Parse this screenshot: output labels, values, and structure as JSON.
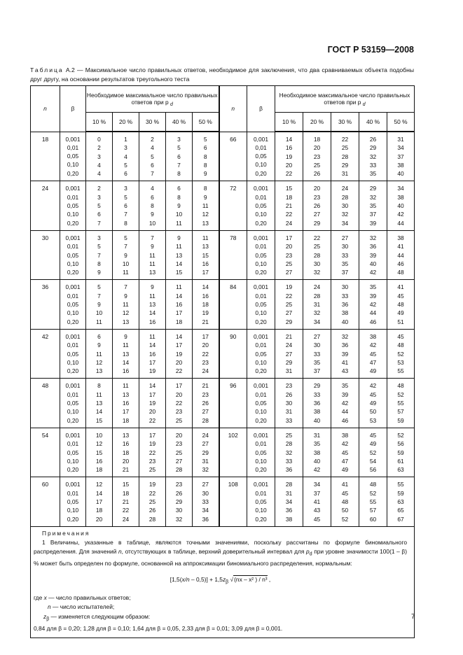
{
  "header": {
    "standard": "ГОСТ Р 53159—2008"
  },
  "caption": {
    "label": "Таблица",
    "text": "А.2 — Максимальное число правильных ответов, необходимое для заключения, что два сравниваемых объекта подобны друг другу, на основании результатов треугольного теста"
  },
  "table": {
    "col_n": "n",
    "col_beta": "β",
    "col_group_header": "Необходимое максимальное число правильных ответов при p",
    "col_group_sub": "d",
    "pct": [
      "10 %",
      "20 %",
      "30 %",
      "40 %",
      "50 %"
    ],
    "betas": [
      "0,001",
      "0,01",
      "0,05",
      "0,10",
      "0,20"
    ],
    "left_groups": [
      {
        "n": "18",
        "rows": [
          [
            "0",
            "1",
            "2",
            "3",
            "5"
          ],
          [
            "2",
            "3",
            "4",
            "5",
            "6"
          ],
          [
            "3",
            "4",
            "5",
            "6",
            "8"
          ],
          [
            "4",
            "5",
            "6",
            "7",
            "8"
          ],
          [
            "4",
            "6",
            "7",
            "8",
            "9"
          ]
        ]
      },
      {
        "n": "24",
        "rows": [
          [
            "2",
            "3",
            "4",
            "6",
            "8"
          ],
          [
            "3",
            "5",
            "6",
            "8",
            "9"
          ],
          [
            "5",
            "6",
            "8",
            "9",
            "11"
          ],
          [
            "6",
            "7",
            "9",
            "10",
            "12"
          ],
          [
            "7",
            "8",
            "10",
            "11",
            "13"
          ]
        ]
      },
      {
        "n": "30",
        "rows": [
          [
            "3",
            "5",
            "7",
            "9",
            "11"
          ],
          [
            "5",
            "7",
            "9",
            "11",
            "13"
          ],
          [
            "7",
            "9",
            "11",
            "13",
            "15"
          ],
          [
            "8",
            "10",
            "11",
            "14",
            "16"
          ],
          [
            "9",
            "11",
            "13",
            "15",
            "17"
          ]
        ]
      },
      {
        "n": "36",
        "rows": [
          [
            "5",
            "7",
            "9",
            "11",
            "14"
          ],
          [
            "7",
            "9",
            "11",
            "14",
            "16"
          ],
          [
            "9",
            "11",
            "13",
            "16",
            "18"
          ],
          [
            "10",
            "12",
            "14",
            "17",
            "19"
          ],
          [
            "11",
            "13",
            "16",
            "18",
            "21"
          ]
        ]
      },
      {
        "n": "42",
        "rows": [
          [
            "6",
            "9",
            "11",
            "14",
            "17"
          ],
          [
            "9",
            "11",
            "14",
            "17",
            "20"
          ],
          [
            "11",
            "13",
            "16",
            "19",
            "22"
          ],
          [
            "12",
            "14",
            "17",
            "20",
            "23"
          ],
          [
            "13",
            "16",
            "19",
            "22",
            "24"
          ]
        ]
      },
      {
        "n": "48",
        "rows": [
          [
            "8",
            "11",
            "14",
            "17",
            "21"
          ],
          [
            "11",
            "13",
            "17",
            "20",
            "23"
          ],
          [
            "13",
            "16",
            "19",
            "22",
            "26"
          ],
          [
            "14",
            "17",
            "20",
            "23",
            "27"
          ],
          [
            "15",
            "18",
            "22",
            "25",
            "28"
          ]
        ]
      },
      {
        "n": "54",
        "rows": [
          [
            "10",
            "13",
            "17",
            "20",
            "24"
          ],
          [
            "12",
            "16",
            "19",
            "23",
            "27"
          ],
          [
            "15",
            "18",
            "22",
            "25",
            "29"
          ],
          [
            "16",
            "20",
            "23",
            "27",
            "31"
          ],
          [
            "18",
            "21",
            "25",
            "28",
            "32"
          ]
        ]
      },
      {
        "n": "60",
        "rows": [
          [
            "12",
            "15",
            "19",
            "23",
            "27"
          ],
          [
            "14",
            "18",
            "22",
            "26",
            "30"
          ],
          [
            "17",
            "21",
            "25",
            "29",
            "33"
          ],
          [
            "18",
            "22",
            "26",
            "30",
            "34"
          ],
          [
            "20",
            "24",
            "28",
            "32",
            "36"
          ]
        ]
      }
    ],
    "right_groups": [
      {
        "n": "66",
        "rows": [
          [
            "14",
            "18",
            "22",
            "26",
            "31"
          ],
          [
            "16",
            "20",
            "25",
            "29",
            "34"
          ],
          [
            "19",
            "23",
            "28",
            "32",
            "37"
          ],
          [
            "20",
            "25",
            "29",
            "33",
            "38"
          ],
          [
            "22",
            "26",
            "31",
            "35",
            "40"
          ]
        ]
      },
      {
        "n": "72",
        "rows": [
          [
            "15",
            "20",
            "24",
            "29",
            "34"
          ],
          [
            "18",
            "23",
            "28",
            "32",
            "38"
          ],
          [
            "21",
            "26",
            "30",
            "35",
            "40"
          ],
          [
            "22",
            "27",
            "32",
            "37",
            "42"
          ],
          [
            "24",
            "29",
            "34",
            "39",
            "44"
          ]
        ]
      },
      {
        "n": "78",
        "rows": [
          [
            "17",
            "22",
            "27",
            "32",
            "38"
          ],
          [
            "20",
            "25",
            "30",
            "36",
            "41"
          ],
          [
            "23",
            "28",
            "33",
            "39",
            "44"
          ],
          [
            "25",
            "30",
            "35",
            "40",
            "46"
          ],
          [
            "27",
            "32",
            "37",
            "42",
            "48"
          ]
        ]
      },
      {
        "n": "84",
        "rows": [
          [
            "19",
            "24",
            "30",
            "35",
            "41"
          ],
          [
            "22",
            "28",
            "33",
            "39",
            "45"
          ],
          [
            "25",
            "31",
            "36",
            "42",
            "48"
          ],
          [
            "27",
            "32",
            "38",
            "44",
            "49"
          ],
          [
            "29",
            "34",
            "40",
            "46",
            "51"
          ]
        ]
      },
      {
        "n": "90",
        "rows": [
          [
            "21",
            "27",
            "32",
            "38",
            "45"
          ],
          [
            "24",
            "30",
            "36",
            "42",
            "48"
          ],
          [
            "27",
            "33",
            "39",
            "45",
            "52"
          ],
          [
            "29",
            "35",
            "41",
            "47",
            "53"
          ],
          [
            "31",
            "37",
            "43",
            "49",
            "55"
          ]
        ]
      },
      {
        "n": "96",
        "rows": [
          [
            "23",
            "29",
            "35",
            "42",
            "48"
          ],
          [
            "26",
            "33",
            "39",
            "45",
            "52"
          ],
          [
            "30",
            "36",
            "42",
            "49",
            "55"
          ],
          [
            "31",
            "38",
            "44",
            "50",
            "57"
          ],
          [
            "33",
            "40",
            "46",
            "53",
            "59"
          ]
        ]
      },
      {
        "n": "102",
        "rows": [
          [
            "25",
            "31",
            "38",
            "45",
            "52"
          ],
          [
            "28",
            "35",
            "42",
            "49",
            "56"
          ],
          [
            "32",
            "38",
            "45",
            "52",
            "59"
          ],
          [
            "33",
            "40",
            "47",
            "54",
            "61"
          ],
          [
            "36",
            "42",
            "49",
            "56",
            "63"
          ]
        ]
      },
      {
        "n": "108",
        "rows": [
          [
            "28",
            "34",
            "41",
            "48",
            "55"
          ],
          [
            "31",
            "37",
            "45",
            "52",
            "59"
          ],
          [
            "34",
            "41",
            "48",
            "55",
            "63"
          ],
          [
            "36",
            "43",
            "50",
            "57",
            "65"
          ],
          [
            "38",
            "45",
            "52",
            "60",
            "67"
          ]
        ]
      }
    ]
  },
  "notes": {
    "title": "Примечания",
    "p1_a": "1 Величины, указанные в таблице, являются точными значениями, поскольку рассчитаны по формуле биномиального распределения. Для значений ",
    "p1_n": "n",
    "p1_b": ", отсутствующих в таблице, верхний доверительный интервал для ",
    "p1_pd": "p",
    "p1_pd_sub": "d",
    "p1_c": " при уровне значимости 100(1 – β) % может быть определен по формуле, основанной на аппроксимации биномиального распределения, нормальным:",
    "formula_a": "[1,5(",
    "formula_xn": "x/n",
    "formula_b": " – 0,5)] + 1,5",
    "formula_z": "z",
    "formula_zsub": "β",
    "formula_sqrt": "(nx – x² ) / n³",
    "formula_end": " ,",
    "where_a": "где ",
    "where_x": "x",
    "where_x_text": " — число правильных ответов;",
    "where_n": "n",
    "where_n_text": " — число испытателей;",
    "where_z": "z",
    "where_z_sub": "β",
    "where_z_text": " — изменяется следующим образом:",
    "z_values": "0,84 для β = 0,20; 1,28 для  β = 0,10; 1,64 для  β = 0,05, 2,33 для  β = 0,01; 3,09 для  β = 0,001."
  },
  "page_number": "7"
}
